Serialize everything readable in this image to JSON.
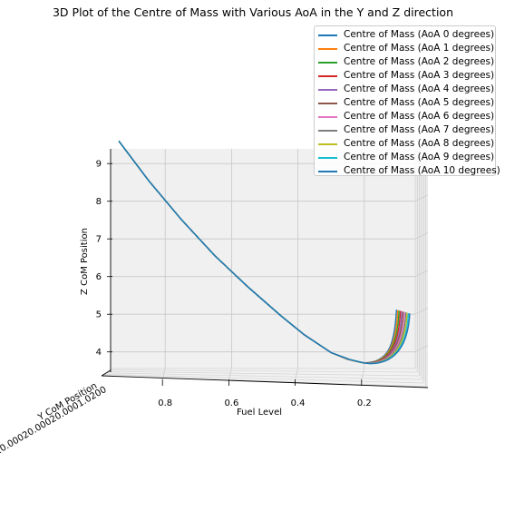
{
  "chart_data": {
    "type": "line",
    "title": "3D Plot of the Centre of Mass with Various AoA in the Y and Z direction",
    "xlabel": "Fuel Level",
    "ylabel": "Y CoM Position",
    "zlabel": "Z CoM Position",
    "x_ticks": [
      "0.8",
      "0.6",
      "0.4",
      "0.2"
    ],
    "z_ticks": [
      "9",
      "8",
      "7",
      "6",
      "5",
      "4"
    ],
    "y_ticks_overlapping": "-0.00020.00020.00020.0001.0200",
    "xlim": [
      1.0,
      0.0
    ],
    "zlim": [
      3.6,
      9.7
    ],
    "grid": true,
    "legend_position": "top-right",
    "shared_curve": {
      "fuel_level": [
        0.94,
        0.85,
        0.75,
        0.65,
        0.55,
        0.45,
        0.38,
        0.3,
        0.25,
        0.21,
        0.2
      ],
      "z_com": [
        9.6,
        8.55,
        7.5,
        6.55,
        5.72,
        4.95,
        4.45,
        3.98,
        3.8,
        3.72,
        3.71
      ]
    },
    "series": [
      {
        "name": "Centre of Mass (AoA 0 degrees)",
        "color": "#1f77b4",
        "end_fuel_level": 0.103,
        "end_z_com": 5.12
      },
      {
        "name": "Centre of Mass (AoA 1 degrees)",
        "color": "#ff7f0e",
        "end_fuel_level": 0.099,
        "end_z_com": 5.11
      },
      {
        "name": "Centre of Mass (AoA 2 degrees)",
        "color": "#2ca02c",
        "end_fuel_level": 0.095,
        "end_z_com": 5.1
      },
      {
        "name": "Centre of Mass (AoA 3 degrees)",
        "color": "#d62728",
        "end_fuel_level": 0.091,
        "end_z_com": 5.09
      },
      {
        "name": "Centre of Mass (AoA 4 degrees)",
        "color": "#9467bd",
        "end_fuel_level": 0.087,
        "end_z_com": 5.08
      },
      {
        "name": "Centre of Mass (AoA 5 degrees)",
        "color": "#8c564b",
        "end_fuel_level": 0.083,
        "end_z_com": 5.07
      },
      {
        "name": "Centre of Mass (AoA 6 degrees)",
        "color": "#e377c2",
        "end_fuel_level": 0.079,
        "end_z_com": 5.06
      },
      {
        "name": "Centre of Mass (AoA 7 degrees)",
        "color": "#7f7f7f",
        "end_fuel_level": 0.075,
        "end_z_com": 5.05
      },
      {
        "name": "Centre of Mass (AoA 8 degrees)",
        "color": "#bcbd22",
        "end_fuel_level": 0.071,
        "end_z_com": 5.04
      },
      {
        "name": "Centre of Mass (AoA 9 degrees)",
        "color": "#17becf",
        "end_fuel_level": 0.067,
        "end_z_com": 5.03
      },
      {
        "name": "Centre of Mass (AoA 10 degrees)",
        "color": "#1f77b4",
        "end_fuel_level": 0.063,
        "end_z_com": 5.02
      }
    ]
  }
}
